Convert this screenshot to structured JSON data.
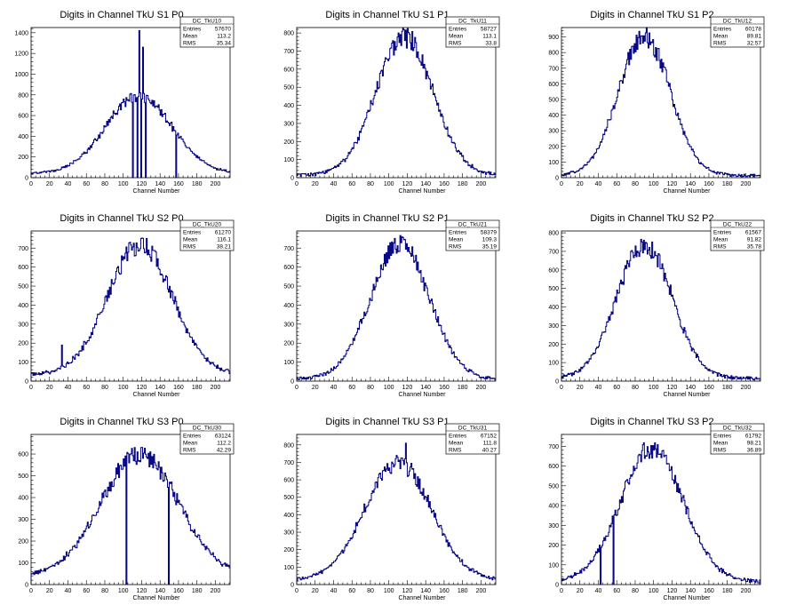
{
  "chart_data": [
    {
      "type": "histogram",
      "title": "Digits in Channel TkU S1 P0",
      "xlabel": "Channel Number",
      "xlim": [
        0,
        216
      ],
      "ylim": [
        0,
        1450
      ],
      "xticks": [
        0,
        20,
        40,
        60,
        80,
        100,
        120,
        140,
        160,
        180,
        200
      ],
      "yticks": [
        0,
        200,
        400,
        600,
        800,
        1000,
        1200,
        1400
      ],
      "stats": {
        "name": "DC_TkU10",
        "entries": "57670",
        "mean": "113.2",
        "rms": "35.34"
      },
      "peak": {
        "center": 117,
        "height": 790,
        "width": 36,
        "base": 40
      },
      "spikes": [
        [
          110,
          0
        ],
        [
          115,
          0
        ],
        [
          117,
          1420
        ],
        [
          119,
          0
        ],
        [
          121,
          1260
        ],
        [
          124,
          0
        ],
        [
          157,
          0
        ]
      ],
      "color": "#000080"
    },
    {
      "type": "histogram",
      "title": "Digits in Channel TkU S1 P1",
      "xlabel": "Channel Number",
      "xlim": [
        0,
        216
      ],
      "ylim": [
        0,
        830
      ],
      "xticks": [
        0,
        20,
        40,
        60,
        80,
        100,
        120,
        140,
        160,
        180,
        200
      ],
      "yticks": [
        0,
        100,
        200,
        300,
        400,
        500,
        600,
        700,
        800
      ],
      "stats": {
        "name": "DC_TkU11",
        "entries": "58727",
        "mean": "113.1",
        "rms": "33.8"
      },
      "peak": {
        "center": 117,
        "height": 780,
        "width": 31,
        "base": 15
      },
      "spikes": [],
      "color": "#000080"
    },
    {
      "type": "histogram",
      "title": "Digits in Channel TkU S1 P2",
      "xlabel": "Channel Number",
      "xlim": [
        0,
        216
      ],
      "ylim": [
        0,
        960
      ],
      "xticks": [
        0,
        20,
        40,
        60,
        80,
        100,
        120,
        140,
        160,
        180,
        200
      ],
      "yticks": [
        0,
        100,
        200,
        300,
        400,
        500,
        600,
        700,
        800,
        900
      ],
      "stats": {
        "name": "DC_TkU12",
        "entries": "60178",
        "mean": "89.81",
        "rms": "32.57"
      },
      "peak": {
        "center": 90,
        "height": 900,
        "width": 28,
        "base": 15
      },
      "spikes": [],
      "color": "#000080"
    },
    {
      "type": "histogram",
      "title": "Digits in Channel TkU S2 P0",
      "xlabel": "Channel Number",
      "xlim": [
        0,
        216
      ],
      "ylim": [
        0,
        790
      ],
      "xticks": [
        0,
        20,
        40,
        60,
        80,
        100,
        120,
        140,
        160,
        180,
        200
      ],
      "yticks": [
        0,
        100,
        200,
        300,
        400,
        500,
        600,
        700
      ],
      "stats": {
        "name": "DC_TkU20",
        "entries": "61270",
        "mean": "116.1",
        "rms": "38.21"
      },
      "peak": {
        "center": 118,
        "height": 720,
        "width": 35,
        "base": 35
      },
      "spikes": [
        [
          33,
          190
        ]
      ],
      "color": "#000080"
    },
    {
      "type": "histogram",
      "title": "Digits in Channel TkU S2 P1",
      "xlabel": "Channel Number",
      "xlim": [
        0,
        216
      ],
      "ylim": [
        0,
        790
      ],
      "xticks": [
        0,
        20,
        40,
        60,
        80,
        100,
        120,
        140,
        160,
        180,
        200
      ],
      "yticks": [
        0,
        100,
        200,
        300,
        400,
        500,
        600,
        700
      ],
      "stats": {
        "name": "DC_TkU21",
        "entries": "58379",
        "mean": "109.3",
        "rms": "35.19"
      },
      "peak": {
        "center": 112,
        "height": 720,
        "width": 32,
        "base": 10
      },
      "spikes": [],
      "color": "#000080"
    },
    {
      "type": "histogram",
      "title": "Digits in Channel TkU S2 P2",
      "xlabel": "Channel Number",
      "xlim": [
        0,
        216
      ],
      "ylim": [
        0,
        810
      ],
      "xticks": [
        0,
        20,
        40,
        60,
        80,
        100,
        120,
        140,
        160,
        180,
        200
      ],
      "yticks": [
        0,
        100,
        200,
        300,
        400,
        500,
        600,
        700,
        800
      ],
      "stats": {
        "name": "DC_TkU22",
        "entries": "61567",
        "mean": "91.82",
        "rms": "35.78"
      },
      "peak": {
        "center": 90,
        "height": 740,
        "width": 30,
        "base": 15
      },
      "spikes": [],
      "color": "#000080"
    },
    {
      "type": "histogram",
      "title": "Digits in Channel TkU S3 P0",
      "xlabel": "Channel Number",
      "xlim": [
        0,
        216
      ],
      "ylim": [
        0,
        690
      ],
      "xticks": [
        0,
        20,
        40,
        60,
        80,
        100,
        120,
        140,
        160,
        180,
        200
      ],
      "yticks": [
        0,
        100,
        200,
        300,
        400,
        500,
        600
      ],
      "stats": {
        "name": "DC_TkU30",
        "entries": "63124",
        "mean": "112.2",
        "rms": "42.29"
      },
      "peak": {
        "center": 118,
        "height": 600,
        "width": 42,
        "base": 40
      },
      "spikes": [
        [
          103,
          0
        ],
        [
          149,
          0
        ]
      ],
      "color": "#000080"
    },
    {
      "type": "histogram",
      "title": "Digits in Channel TkU S3 P1",
      "xlabel": "Channel Number",
      "xlim": [
        0,
        216
      ],
      "ylim": [
        0,
        860
      ],
      "xticks": [
        0,
        20,
        40,
        60,
        80,
        100,
        120,
        140,
        160,
        180,
        200
      ],
      "yticks": [
        0,
        100,
        200,
        300,
        400,
        500,
        600,
        700,
        800
      ],
      "stats": {
        "name": "DC_TkU31",
        "entries": "67152",
        "mean": "111.8",
        "rms": "40.27"
      },
      "peak": {
        "center": 110,
        "height": 700,
        "width": 36,
        "base": 25
      },
      "spikes": [
        [
          118,
          810
        ]
      ],
      "color": "#000080"
    },
    {
      "type": "histogram",
      "title": "Digits in Channel TkU S3 P2",
      "xlabel": "Channel Number",
      "xlim": [
        0,
        216
      ],
      "ylim": [
        0,
        760
      ],
      "xticks": [
        0,
        20,
        40,
        60,
        80,
        100,
        120,
        140,
        160,
        180,
        200
      ],
      "yticks": [
        0,
        100,
        200,
        300,
        400,
        500,
        600,
        700
      ],
      "stats": {
        "name": "DC_TkU32",
        "entries": "61792",
        "mean": "98.21",
        "rms": "36.89"
      },
      "peak": {
        "center": 98,
        "height": 690,
        "width": 34,
        "base": 15
      },
      "spikes": [
        [
          42,
          0
        ],
        [
          56,
          0
        ]
      ],
      "color": "#000080"
    }
  ],
  "stats_labels": {
    "entries": "Entries",
    "mean": "Mean",
    "rms": "RMS"
  }
}
